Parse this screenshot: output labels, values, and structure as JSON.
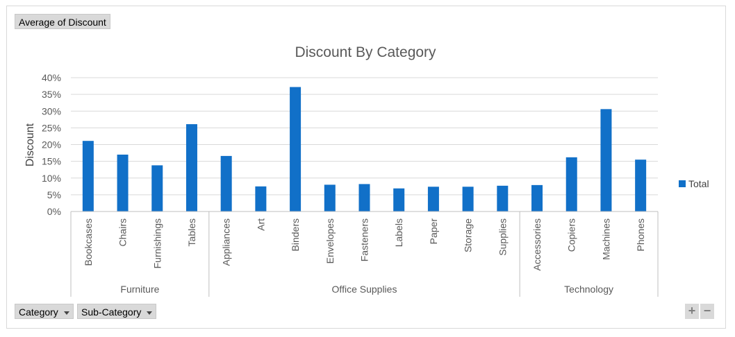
{
  "value_field_button": "Average of Discount",
  "axis_field_buttons": [
    {
      "label": "Category"
    },
    {
      "label": "Sub-Category"
    }
  ],
  "zoom": {
    "plus": "+",
    "minus": "−"
  },
  "colors": {
    "bar": "#1170c8",
    "grid": "#d9d9d9",
    "axis": "#bfbfbf"
  },
  "chart_data": {
    "type": "bar",
    "title": "Discount By Category",
    "ylabel": "Discount",
    "xlabel": "",
    "ylim": [
      0,
      0.4
    ],
    "yticks": [
      "0%",
      "5%",
      "10%",
      "15%",
      "20%",
      "25%",
      "30%",
      "35%",
      "40%"
    ],
    "grid": true,
    "legend": {
      "position": "right",
      "entries": [
        "Total"
      ]
    },
    "groups": [
      {
        "name": "Furniture",
        "categories": [
          "Bookcases",
          "Chairs",
          "Furnishings",
          "Tables"
        ]
      },
      {
        "name": "Office Supplies",
        "categories": [
          "Appliances",
          "Art",
          "Binders",
          "Envelopes",
          "Fasteners",
          "Labels",
          "Paper",
          "Storage",
          "Supplies"
        ]
      },
      {
        "name": "Technology",
        "categories": [
          "Accessories",
          "Copiers",
          "Machines",
          "Phones"
        ]
      }
    ],
    "categories": [
      "Bookcases",
      "Chairs",
      "Furnishings",
      "Tables",
      "Appliances",
      "Art",
      "Binders",
      "Envelopes",
      "Fasteners",
      "Labels",
      "Paper",
      "Storage",
      "Supplies",
      "Accessories",
      "Copiers",
      "Machines",
      "Phones"
    ],
    "series": [
      {
        "name": "Total",
        "values": [
          0.211,
          0.17,
          0.138,
          0.261,
          0.166,
          0.075,
          0.372,
          0.08,
          0.082,
          0.069,
          0.074,
          0.074,
          0.077,
          0.079,
          0.162,
          0.306,
          0.155
        ]
      }
    ]
  }
}
